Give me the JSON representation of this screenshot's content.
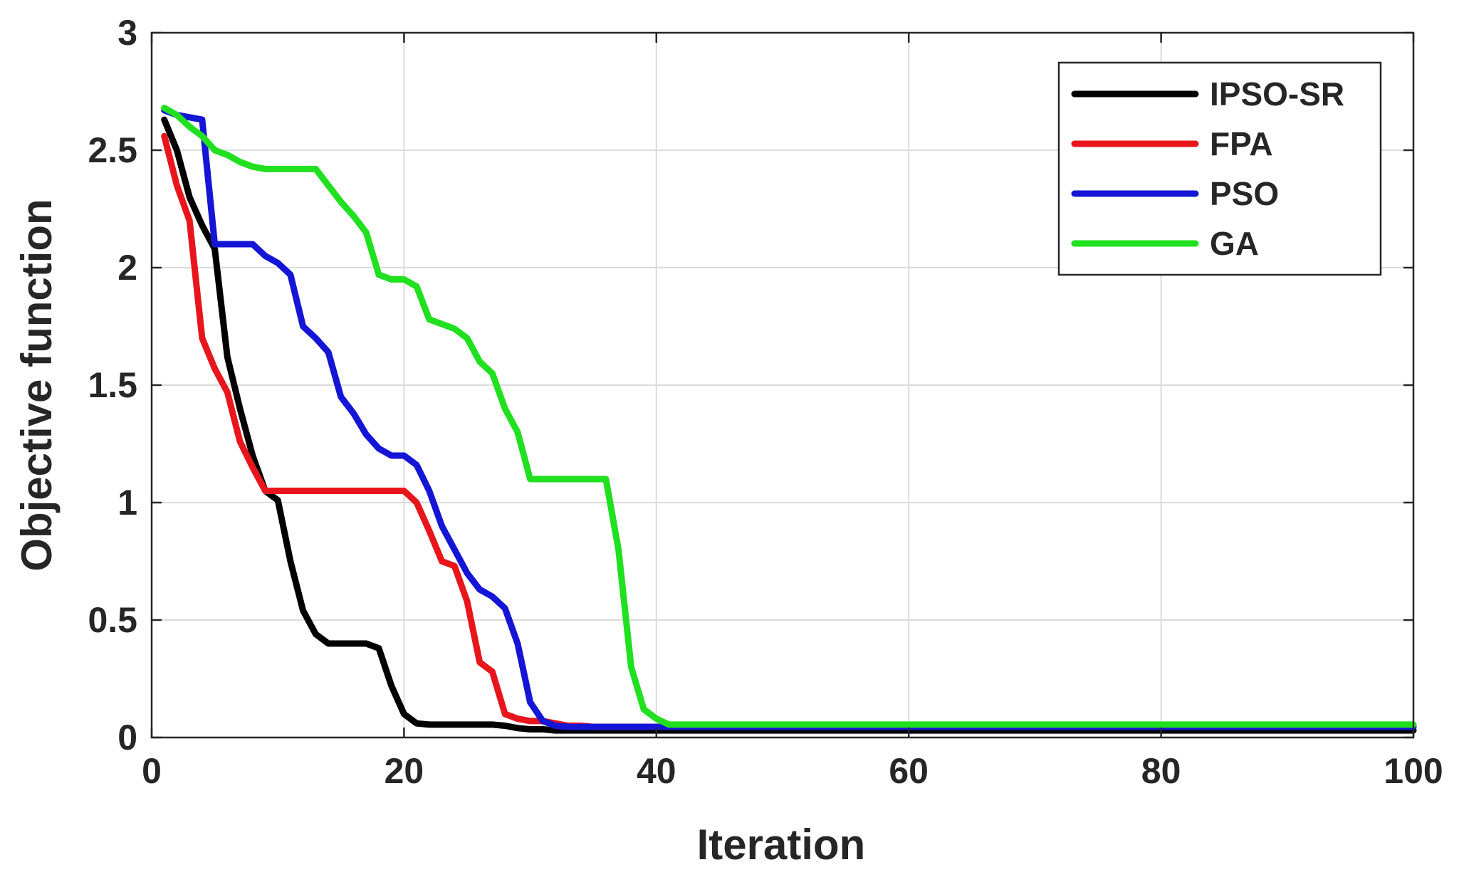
{
  "chart_data": {
    "type": "line",
    "title": "",
    "xlabel": "Iteration",
    "ylabel": "Objective function",
    "xlim": [
      0,
      100
    ],
    "ylim": [
      0,
      3
    ],
    "xticks": [
      0,
      20,
      40,
      60,
      80,
      100
    ],
    "yticks": [
      0,
      0.5,
      1,
      1.5,
      2,
      2.5,
      3
    ],
    "xtick_labels": [
      "0",
      "20",
      "40",
      "60",
      "80",
      "100"
    ],
    "ytick_labels": [
      "0",
      "0.5",
      "1",
      "1.5",
      "2",
      "2.5",
      "3"
    ],
    "grid": true,
    "legend_position": "top-right",
    "series": [
      {
        "name": "IPSO-SR",
        "color": "#000000",
        "x": [
          1,
          2,
          3,
          4,
          5,
          6,
          7,
          8,
          9,
          10,
          11,
          12,
          13,
          14,
          15,
          16,
          17,
          18,
          19,
          20,
          21,
          22,
          23,
          24,
          25,
          26,
          27,
          28,
          29,
          30,
          31,
          32,
          33,
          34,
          35,
          40,
          50,
          60,
          70,
          80,
          90,
          100
        ],
        "y": [
          2.63,
          2.5,
          2.3,
          2.18,
          2.08,
          1.62,
          1.4,
          1.2,
          1.05,
          1.01,
          0.75,
          0.54,
          0.44,
          0.4,
          0.4,
          0.4,
          0.4,
          0.38,
          0.22,
          0.1,
          0.06,
          0.055,
          0.055,
          0.055,
          0.055,
          0.055,
          0.055,
          0.05,
          0.04,
          0.035,
          0.035,
          0.03,
          0.03,
          0.03,
          0.03,
          0.03,
          0.03,
          0.03,
          0.03,
          0.03,
          0.03,
          0.03
        ]
      },
      {
        "name": "FPA",
        "color": "#e8161c",
        "x": [
          1,
          2,
          3,
          4,
          5,
          6,
          7,
          8,
          9,
          10,
          15,
          20,
          21,
          22,
          23,
          24,
          25,
          26,
          27,
          28,
          29,
          30,
          31,
          32,
          33,
          34,
          35,
          40,
          50,
          60,
          70,
          80,
          90,
          100
        ],
        "y": [
          2.56,
          2.35,
          2.2,
          1.7,
          1.57,
          1.47,
          1.26,
          1.15,
          1.05,
          1.05,
          1.05,
          1.05,
          1.0,
          0.88,
          0.75,
          0.73,
          0.58,
          0.32,
          0.28,
          0.1,
          0.08,
          0.07,
          0.07,
          0.06,
          0.05,
          0.05,
          0.045,
          0.045,
          0.045,
          0.045,
          0.045,
          0.045,
          0.045,
          0.045
        ]
      },
      {
        "name": "PSO",
        "color": "#1515d6",
        "x": [
          1,
          2,
          3,
          4,
          5,
          6,
          7,
          8,
          9,
          10,
          11,
          12,
          13,
          14,
          15,
          16,
          17,
          18,
          19,
          20,
          21,
          22,
          23,
          24,
          25,
          26,
          27,
          28,
          29,
          30,
          31,
          32,
          33,
          35,
          40,
          50,
          60,
          70,
          80,
          90,
          100
        ],
        "y": [
          2.67,
          2.65,
          2.64,
          2.63,
          2.1,
          2.1,
          2.1,
          2.1,
          2.05,
          2.02,
          1.97,
          1.75,
          1.7,
          1.64,
          1.45,
          1.38,
          1.29,
          1.23,
          1.2,
          1.2,
          1.16,
          1.05,
          0.9,
          0.8,
          0.7,
          0.63,
          0.6,
          0.55,
          0.4,
          0.15,
          0.07,
          0.05,
          0.045,
          0.045,
          0.045,
          0.045,
          0.045,
          0.045,
          0.045,
          0.045,
          0.045
        ]
      },
      {
        "name": "GA",
        "color": "#20e020",
        "x": [
          1,
          2,
          3,
          4,
          5,
          6,
          7,
          8,
          9,
          10,
          11,
          12,
          13,
          14,
          15,
          16,
          17,
          18,
          19,
          20,
          21,
          22,
          23,
          24,
          25,
          26,
          27,
          28,
          29,
          30,
          31,
          32,
          33,
          34,
          35,
          36,
          37,
          38,
          39,
          40,
          41,
          50,
          60,
          70,
          80,
          90,
          100
        ],
        "y": [
          2.68,
          2.65,
          2.6,
          2.56,
          2.5,
          2.48,
          2.45,
          2.43,
          2.42,
          2.42,
          2.42,
          2.42,
          2.42,
          2.35,
          2.28,
          2.22,
          2.15,
          1.97,
          1.95,
          1.95,
          1.92,
          1.78,
          1.76,
          1.74,
          1.7,
          1.6,
          1.55,
          1.4,
          1.3,
          1.1,
          1.1,
          1.1,
          1.1,
          1.1,
          1.1,
          1.1,
          0.8,
          0.3,
          0.12,
          0.08,
          0.055,
          0.055,
          0.055,
          0.055,
          0.055,
          0.055,
          0.055
        ]
      }
    ]
  }
}
